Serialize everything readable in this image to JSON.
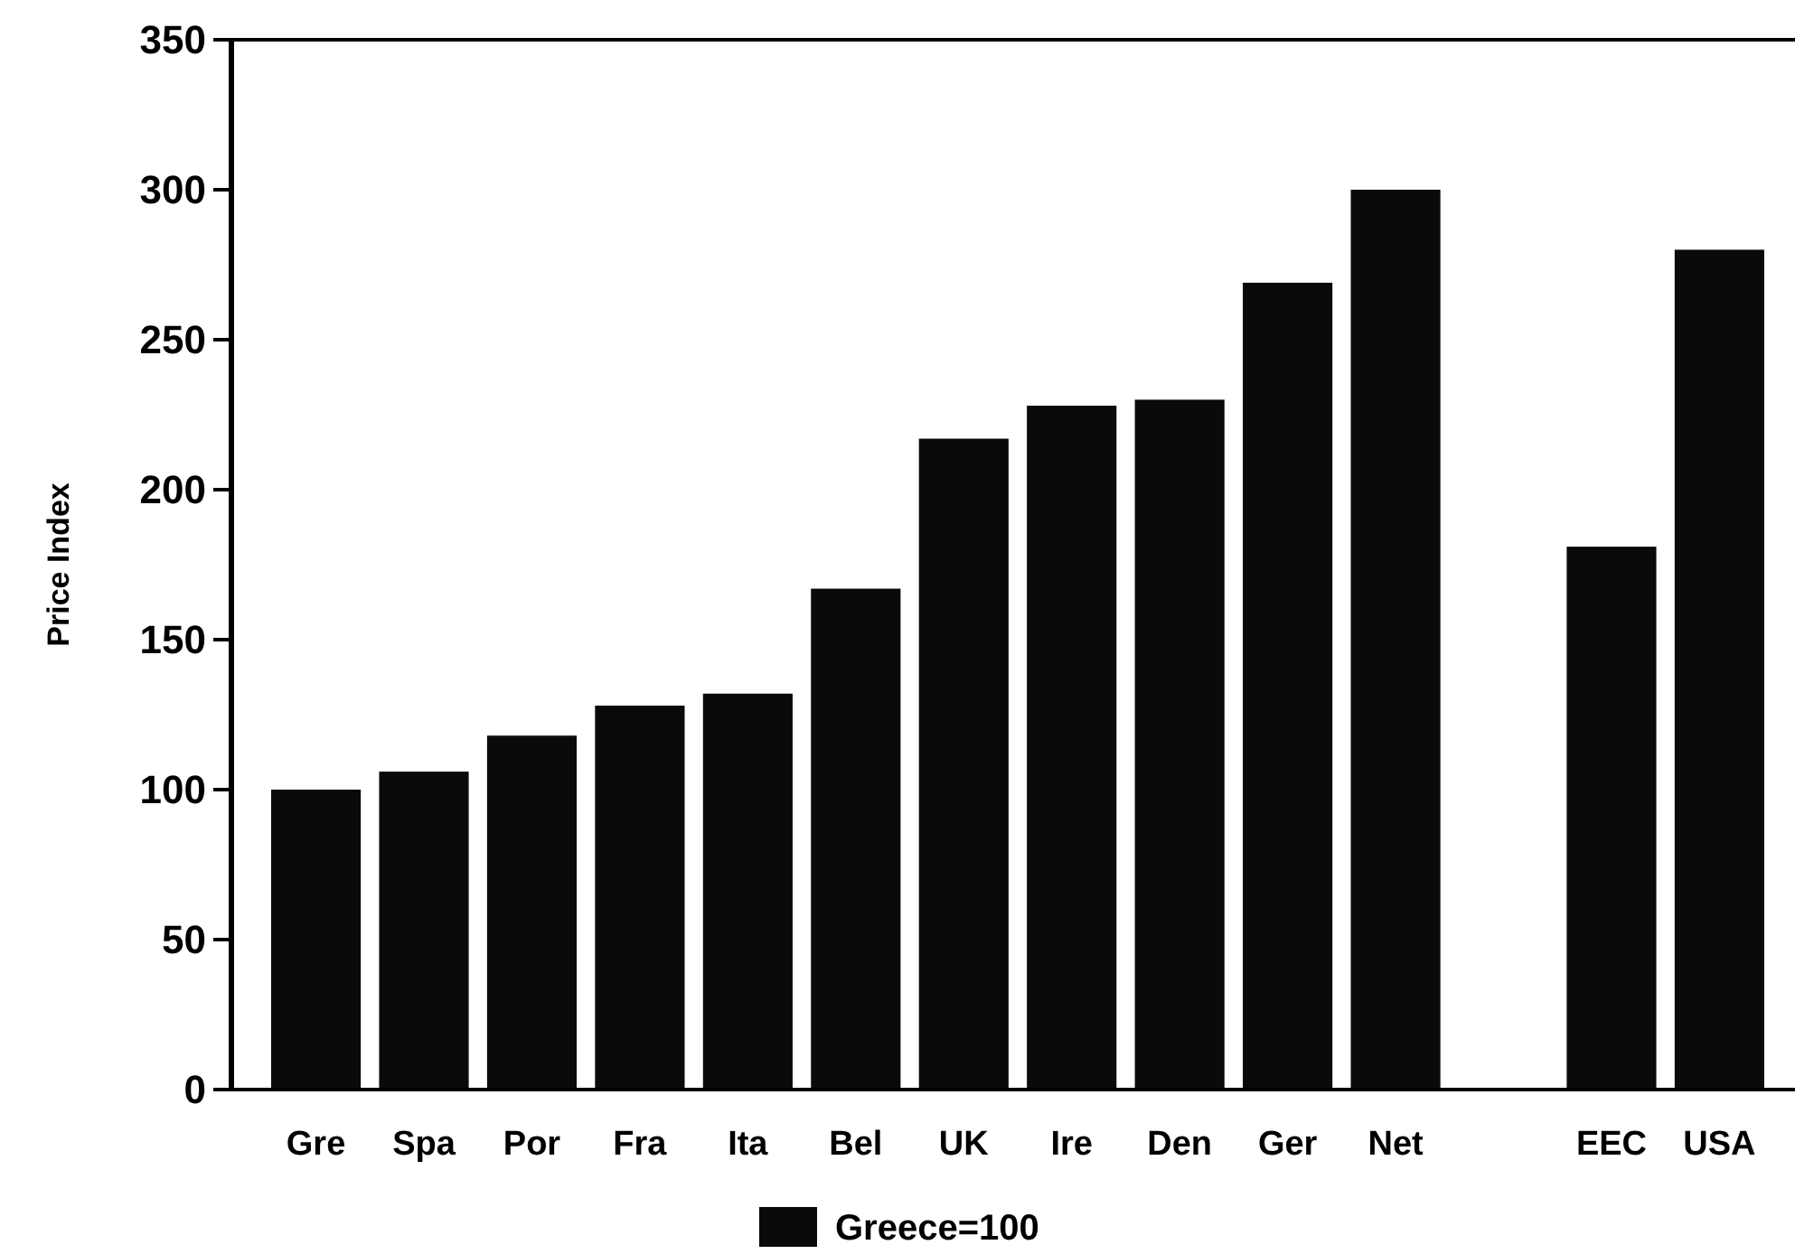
{
  "chart_data": {
    "type": "bar",
    "ylabel": "Price Index",
    "categories": [
      "Gre",
      "Spa",
      "Por",
      "Fra",
      "Ita",
      "Bel",
      "UK",
      "Ire",
      "Den",
      "Ger",
      "Net",
      null,
      "EEC",
      "USA"
    ],
    "series": [
      {
        "name": "Greece=100",
        "color": "#0a0a0a",
        "values": [
          100,
          106,
          118,
          128,
          132,
          167,
          217,
          228,
          230,
          269,
          300,
          null,
          181,
          280
        ]
      }
    ],
    "ylim": [
      0,
      350
    ],
    "yticks": [
      0,
      50,
      100,
      150,
      200,
      250,
      300,
      350
    ],
    "grid": false,
    "legend": "bottom"
  }
}
